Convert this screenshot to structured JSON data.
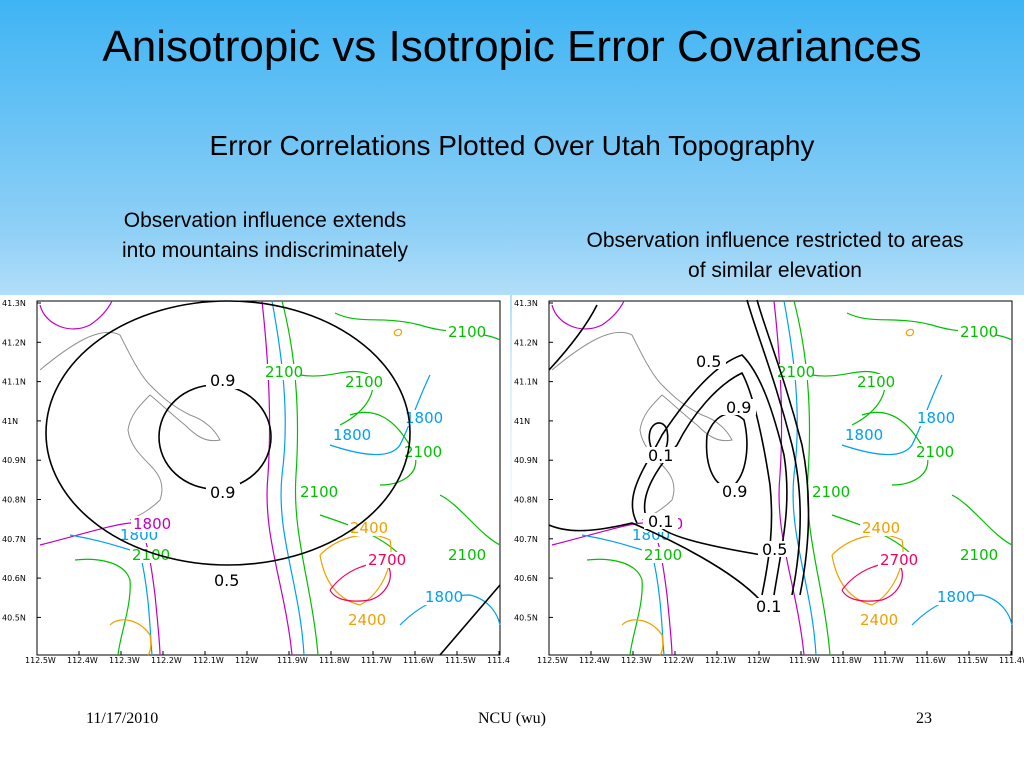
{
  "slide": {
    "title": "Anisotropic vs Isotropic Error Covariances",
    "subtitle": "Error Correlations Plotted Over Utah Topography",
    "caption_left": "Observation influence extends into mountains indiscriminately",
    "caption_right": "Observation influence restricted to areas of similar elevation"
  },
  "axes": {
    "y_ticks": [
      "41.3N",
      "41.2N",
      "41.1N",
      "41N",
      "40.9N",
      "40.8N",
      "40.7N",
      "40.6N",
      "40.5N"
    ],
    "x_ticks": [
      "112.5W",
      "112.4W",
      "112.3W",
      "112.2W",
      "112.1W",
      "112W",
      "111.9W",
      "111.8W",
      "111.7W",
      "111.6W",
      "111.5W",
      "111.4W"
    ]
  },
  "topo_labels": {
    "l2100a": "2100",
    "l2100b": "2100",
    "l2100c": "2100",
    "l2100d": "2100",
    "l2100e": "2100",
    "l2100f": "2100",
    "l2100g": "2100",
    "l1800a": "1800",
    "l1800b": "1800",
    "l1800c": "1800",
    "l1800d": "1800",
    "l1800e": "1800",
    "l2400a": "2400",
    "l2400b": "2400",
    "l2700": "2700"
  },
  "left_map": {
    "c09a": "0.9",
    "c09b": "0.9",
    "c05": "0.5"
  },
  "right_map": {
    "c05a": "0.5",
    "c09a": "0.9",
    "c09b": "0.9",
    "c01a": "0.1",
    "c01b": "0.1",
    "c05b": "0.5",
    "c01c": "0.1"
  },
  "footer": {
    "date": "11/17/2010",
    "center": "NCU (wu)",
    "page": "23"
  },
  "colors": {
    "purple": "#c000c0",
    "cyan": "#00a0f0",
    "green": "#00c000",
    "orange": "#f0a000",
    "red": "#f00060",
    "gray": "#909090",
    "black": "#000000"
  }
}
